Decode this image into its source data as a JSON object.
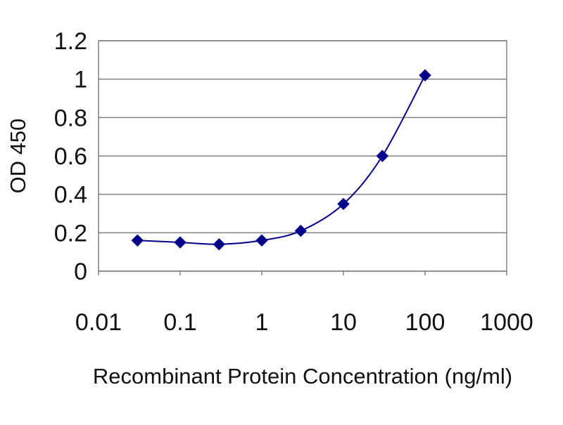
{
  "chart_data": {
    "type": "scatter",
    "title": "",
    "xlabel": "Recombinant Protein Concentration (ng/ml)",
    "ylabel": "OD 450",
    "x_scale": "log",
    "xlim": [
      0.01,
      1000
    ],
    "ylim": [
      0,
      1.2
    ],
    "x_ticks": [
      0.01,
      0.1,
      1,
      10,
      100,
      1000
    ],
    "x_tick_labels": [
      "0.01",
      "0.1",
      "1",
      "10",
      "100",
      "1000"
    ],
    "y_ticks": [
      0,
      0.2,
      0.4,
      0.6,
      0.8,
      1.0,
      1.2
    ],
    "y_tick_labels": [
      "0",
      "0.2",
      "0.4",
      "0.6",
      "0.8",
      "1",
      "1.2"
    ],
    "grid": "horizontal",
    "legend": "none",
    "marker": "diamond",
    "curve": "smooth",
    "series": [
      {
        "color": "#00008b",
        "x": [
          0.03,
          0.1,
          0.3,
          1,
          3,
          10,
          30,
          100
        ],
        "y": [
          0.16,
          0.15,
          0.14,
          0.16,
          0.21,
          0.35,
          0.6,
          1.02
        ]
      }
    ]
  }
}
